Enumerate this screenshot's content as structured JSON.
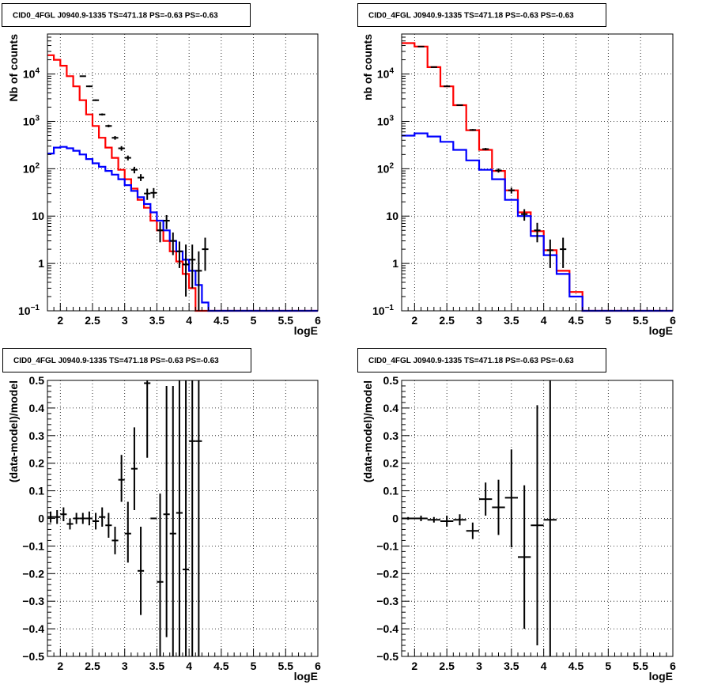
{
  "chart_data": [
    {
      "type": "line",
      "title": "CID0_4FGL J0940.9-1335 TS=471.18 PS=-0.63 PS=-0.63",
      "xlabel": "logE",
      "ylabel": "Nb of counts",
      "yscale": "log",
      "xlim": [
        1.8,
        6.0
      ],
      "ylim": [
        0.1,
        70000
      ],
      "x_ticks": [
        "2",
        "2.5",
        "3",
        "3.5",
        "4",
        "4.5",
        "5",
        "5.5",
        "6"
      ],
      "y_ticks": [
        "10",
        "1"
      ],
      "y_ticks_exp": [
        {
          "base": "10",
          "exp": "4"
        },
        {
          "base": "10",
          "exp": "3"
        },
        {
          "base": "10",
          "exp": "2"
        },
        {
          "base": "10",
          "exp": "−1"
        }
      ],
      "grid": true,
      "bin_edges": [
        1.8,
        1.9,
        2.0,
        2.1,
        2.2,
        2.3,
        2.4,
        2.5,
        2.6,
        2.7,
        2.8,
        2.9,
        3.0,
        3.1,
        3.2,
        3.3,
        3.4,
        3.5,
        3.6,
        3.7,
        3.8,
        3.9,
        4.0,
        4.1,
        4.2,
        4.3,
        4.4,
        4.5,
        4.6,
        4.7,
        4.8,
        4.9,
        5.0,
        5.1,
        5.2,
        5.3,
        5.4,
        5.5,
        5.6,
        5.7,
        5.8,
        5.9,
        6.0
      ],
      "series": [
        {
          "color": "#ff0000",
          "kind": "hist",
          "values": [
            25000,
            20000,
            15000,
            9000,
            5500,
            2800,
            1400,
            800,
            450,
            280,
            170,
            95,
            60,
            38,
            22,
            15,
            8,
            5,
            3,
            1.8,
            1.1,
            0.6,
            0.3,
            0.1,
            0.1,
            0.1,
            0.1,
            0.1,
            0.1,
            0.1,
            0.1,
            0.1,
            0.1,
            0.1,
            0.1,
            0.1,
            0.1,
            0.1,
            0.1,
            0.1,
            0.1,
            0.1
          ]
        },
        {
          "color": "#0000ff",
          "kind": "hist",
          "values": [
            210,
            280,
            290,
            270,
            240,
            200,
            160,
            130,
            110,
            90,
            75,
            60,
            45,
            34,
            25,
            18,
            12,
            8,
            5,
            3,
            1.8,
            1.2,
            0.7,
            0.35,
            0.15,
            0.1,
            0.1,
            0.1,
            0.1,
            0.1,
            0.1,
            0.1,
            0.1,
            0.1,
            0.1,
            0.1,
            0.1,
            0.1,
            0.1,
            0.1,
            0.1,
            0.1
          ]
        },
        {
          "color": "#000000",
          "kind": "points",
          "x": [
            2.35,
            2.45,
            2.55,
            2.65,
            2.75,
            2.85,
            2.95,
            3.05,
            3.15,
            3.25,
            3.35,
            3.45,
            3.55,
            3.65,
            3.75,
            3.85,
            3.95,
            4.05,
            4.15,
            4.25
          ],
          "y": [
            9000,
            5500,
            2800,
            1400,
            800,
            450,
            270,
            170,
            95,
            65,
            30,
            31,
            5,
            8,
            3,
            1.8,
            0.95,
            1.2,
            0.7,
            2
          ],
          "lo": [
            8800,
            5300,
            2700,
            1330,
            750,
            410,
            240,
            150,
            80,
            55,
            22,
            24,
            2.8,
            5.3,
            1.5,
            0.8,
            0.2,
            0.3,
            0.05,
            0.7
          ],
          "hi": [
            9200,
            5700,
            2900,
            1470,
            850,
            490,
            300,
            190,
            110,
            77,
            38,
            39,
            7.5,
            10.5,
            4.5,
            2.9,
            2.5,
            2.5,
            1.8,
            3.5
          ]
        }
      ]
    },
    {
      "type": "line",
      "title": "CID0_4FGL J0940.9-1335 TS=471.18 PS=-0.63 PS=-0.63",
      "xlabel": "logE",
      "ylabel": "nb of counts",
      "yscale": "log",
      "xlim": [
        1.8,
        6.0
      ],
      "ylim": [
        0.1,
        70000
      ],
      "x_ticks": [
        "2",
        "2.5",
        "3",
        "3.5",
        "4",
        "4.5",
        "5",
        "5.5",
        "6"
      ],
      "y_ticks": [
        "10",
        "1"
      ],
      "y_ticks_exp": [
        {
          "base": "10",
          "exp": "4"
        },
        {
          "base": "10",
          "exp": "3"
        },
        {
          "base": "10",
          "exp": "2"
        },
        {
          "base": "10",
          "exp": "−1"
        }
      ],
      "grid": true,
      "bin_edges": [
        1.8,
        2.0,
        2.2,
        2.4,
        2.6,
        2.8,
        3.0,
        3.2,
        3.4,
        3.6,
        3.8,
        4.0,
        4.2,
        4.4,
        4.6,
        4.8,
        5.0,
        5.2,
        5.4,
        5.6,
        5.8,
        6.0
      ],
      "series": [
        {
          "color": "#ff0000",
          "kind": "hist",
          "values": [
            45000,
            38000,
            14000,
            5500,
            2200,
            650,
            250,
            90,
            35,
            12,
            4.8,
            1.9,
            0.7,
            0.25,
            0.1,
            0.1,
            0.1,
            0.1,
            0.1,
            0.1,
            0.1
          ]
        },
        {
          "color": "#0000ff",
          "kind": "hist",
          "values": [
            500,
            560,
            480,
            370,
            250,
            150,
            95,
            60,
            22,
            10,
            3.8,
            1.5,
            0.6,
            0.2,
            0.1,
            0.1,
            0.1,
            0.1,
            0.1,
            0.1,
            0.1
          ]
        },
        {
          "color": "#000000",
          "kind": "points",
          "x": [
            2.1,
            2.3,
            2.5,
            2.7,
            2.9,
            3.1,
            3.3,
            3.5,
            3.7,
            3.9,
            4.1,
            4.3
          ],
          "y": [
            38000,
            14000,
            5500,
            2200,
            660,
            260,
            92,
            35,
            11,
            5,
            1.9,
            2
          ],
          "lo": [
            37700,
            13800,
            5400,
            2150,
            630,
            245,
            83,
            30,
            8,
            2.8,
            0.8,
            0.8
          ],
          "hi": [
            38300,
            14200,
            5600,
            2250,
            690,
            275,
            101,
            40,
            14,
            7.2,
            3.2,
            3.5
          ]
        }
      ]
    },
    {
      "type": "scatter",
      "title": "CID0_4FGL J0940.9-1335 TS=471.18 PS=-0.63 PS=-0.63",
      "xlabel": "logE",
      "ylabel": "(data-model)/model",
      "xlim": [
        1.8,
        6.0
      ],
      "ylim": [
        -0.5,
        0.5
      ],
      "x_ticks": [
        "2",
        "2.5",
        "3",
        "3.5",
        "4",
        "4.5",
        "5",
        "5.5",
        "6"
      ],
      "y_ticks": [
        "0.5",
        "0.4",
        "0.3",
        "0.2",
        "0.1",
        "0",
        "−0.1",
        "−0.2",
        "−0.3",
        "−0.4",
        "−0.5"
      ],
      "grid": true,
      "series": [
        {
          "color": "#000000",
          "kind": "points",
          "half_width": 0.05,
          "x": [
            1.85,
            1.95,
            2.05,
            2.15,
            2.25,
            2.35,
            2.45,
            2.55,
            2.65,
            2.75,
            2.85,
            2.95,
            3.05,
            3.15,
            3.25,
            3.35,
            3.45,
            3.55,
            3.65,
            3.75,
            3.85,
            3.95,
            4.05,
            4.15
          ],
          "y": [
            0.005,
            0.005,
            0.015,
            -0.02,
            0.0,
            0.0,
            0.0,
            -0.01,
            0.005,
            -0.025,
            -0.08,
            0.14,
            -0.055,
            0.18,
            -0.19,
            0.49,
            0.0,
            -0.23,
            0.015,
            -0.055,
            0.02,
            -0.185,
            0.28,
            0.28
          ],
          "lo": [
            -0.015,
            -0.02,
            -0.01,
            -0.04,
            -0.02,
            -0.02,
            -0.025,
            -0.04,
            -0.03,
            -0.07,
            -0.13,
            0.06,
            -0.16,
            0.03,
            -0.35,
            0.22,
            0.0,
            -0.5,
            -0.43,
            -0.5,
            -0.5,
            -0.5,
            -0.5,
            -0.5
          ],
          "hi": [
            0.025,
            0.03,
            0.04,
            0.0,
            0.02,
            0.02,
            0.025,
            0.02,
            0.04,
            0.02,
            -0.03,
            0.23,
            0.06,
            0.33,
            -0.03,
            0.5,
            0.0,
            0.09,
            0.48,
            0.48,
            0.5,
            0.5,
            0.5,
            0.5
          ],
          "x_vis": [
            1.85,
            1.95,
            2.05,
            2.15,
            2.25,
            2.35,
            2.45,
            2.55,
            2.65,
            2.75,
            2.85,
            2.95,
            3.05,
            3.15,
            3.25,
            3.35,
            3.45,
            3.65,
            3.75,
            3.85,
            3.95,
            4.05,
            4.15
          ]
        }
      ]
    },
    {
      "type": "scatter",
      "title": "CID0_4FGL J0940.9-1335 TS=471.18 PS=-0.63 PS=-0.63",
      "xlabel": "logE",
      "ylabel": "(data-model)/model",
      "xlim": [
        1.8,
        6.0
      ],
      "ylim": [
        -0.5,
        0.5
      ],
      "x_ticks": [
        "2",
        "2.5",
        "3",
        "3.5",
        "4",
        "4.5",
        "5",
        "5.5",
        "6"
      ],
      "y_ticks": [
        "0.5",
        "0.4",
        "0.3",
        "0.2",
        "0.1",
        "0",
        "−0.1",
        "−0.2",
        "−0.3",
        "−0.4",
        "−0.5"
      ],
      "grid": true,
      "series": [
        {
          "color": "#000000",
          "kind": "points",
          "half_width": 0.1,
          "x": [
            1.9,
            2.1,
            2.3,
            2.5,
            2.7,
            2.9,
            3.1,
            3.3,
            3.5,
            3.7,
            3.9,
            4.1
          ],
          "y": [
            0.0,
            0.0,
            -0.005,
            -0.01,
            -0.005,
            -0.045,
            0.07,
            0.04,
            0.075,
            -0.14,
            -0.025,
            -0.005
          ],
          "lo": [
            -0.005,
            -0.01,
            -0.015,
            -0.03,
            -0.025,
            -0.075,
            0.01,
            -0.06,
            -0.105,
            -0.4,
            -0.46,
            -0.5
          ],
          "hi": [
            0.005,
            0.01,
            0.005,
            0.01,
            0.015,
            -0.015,
            0.13,
            0.14,
            0.25,
            0.12,
            0.41,
            0.5
          ]
        }
      ]
    }
  ]
}
